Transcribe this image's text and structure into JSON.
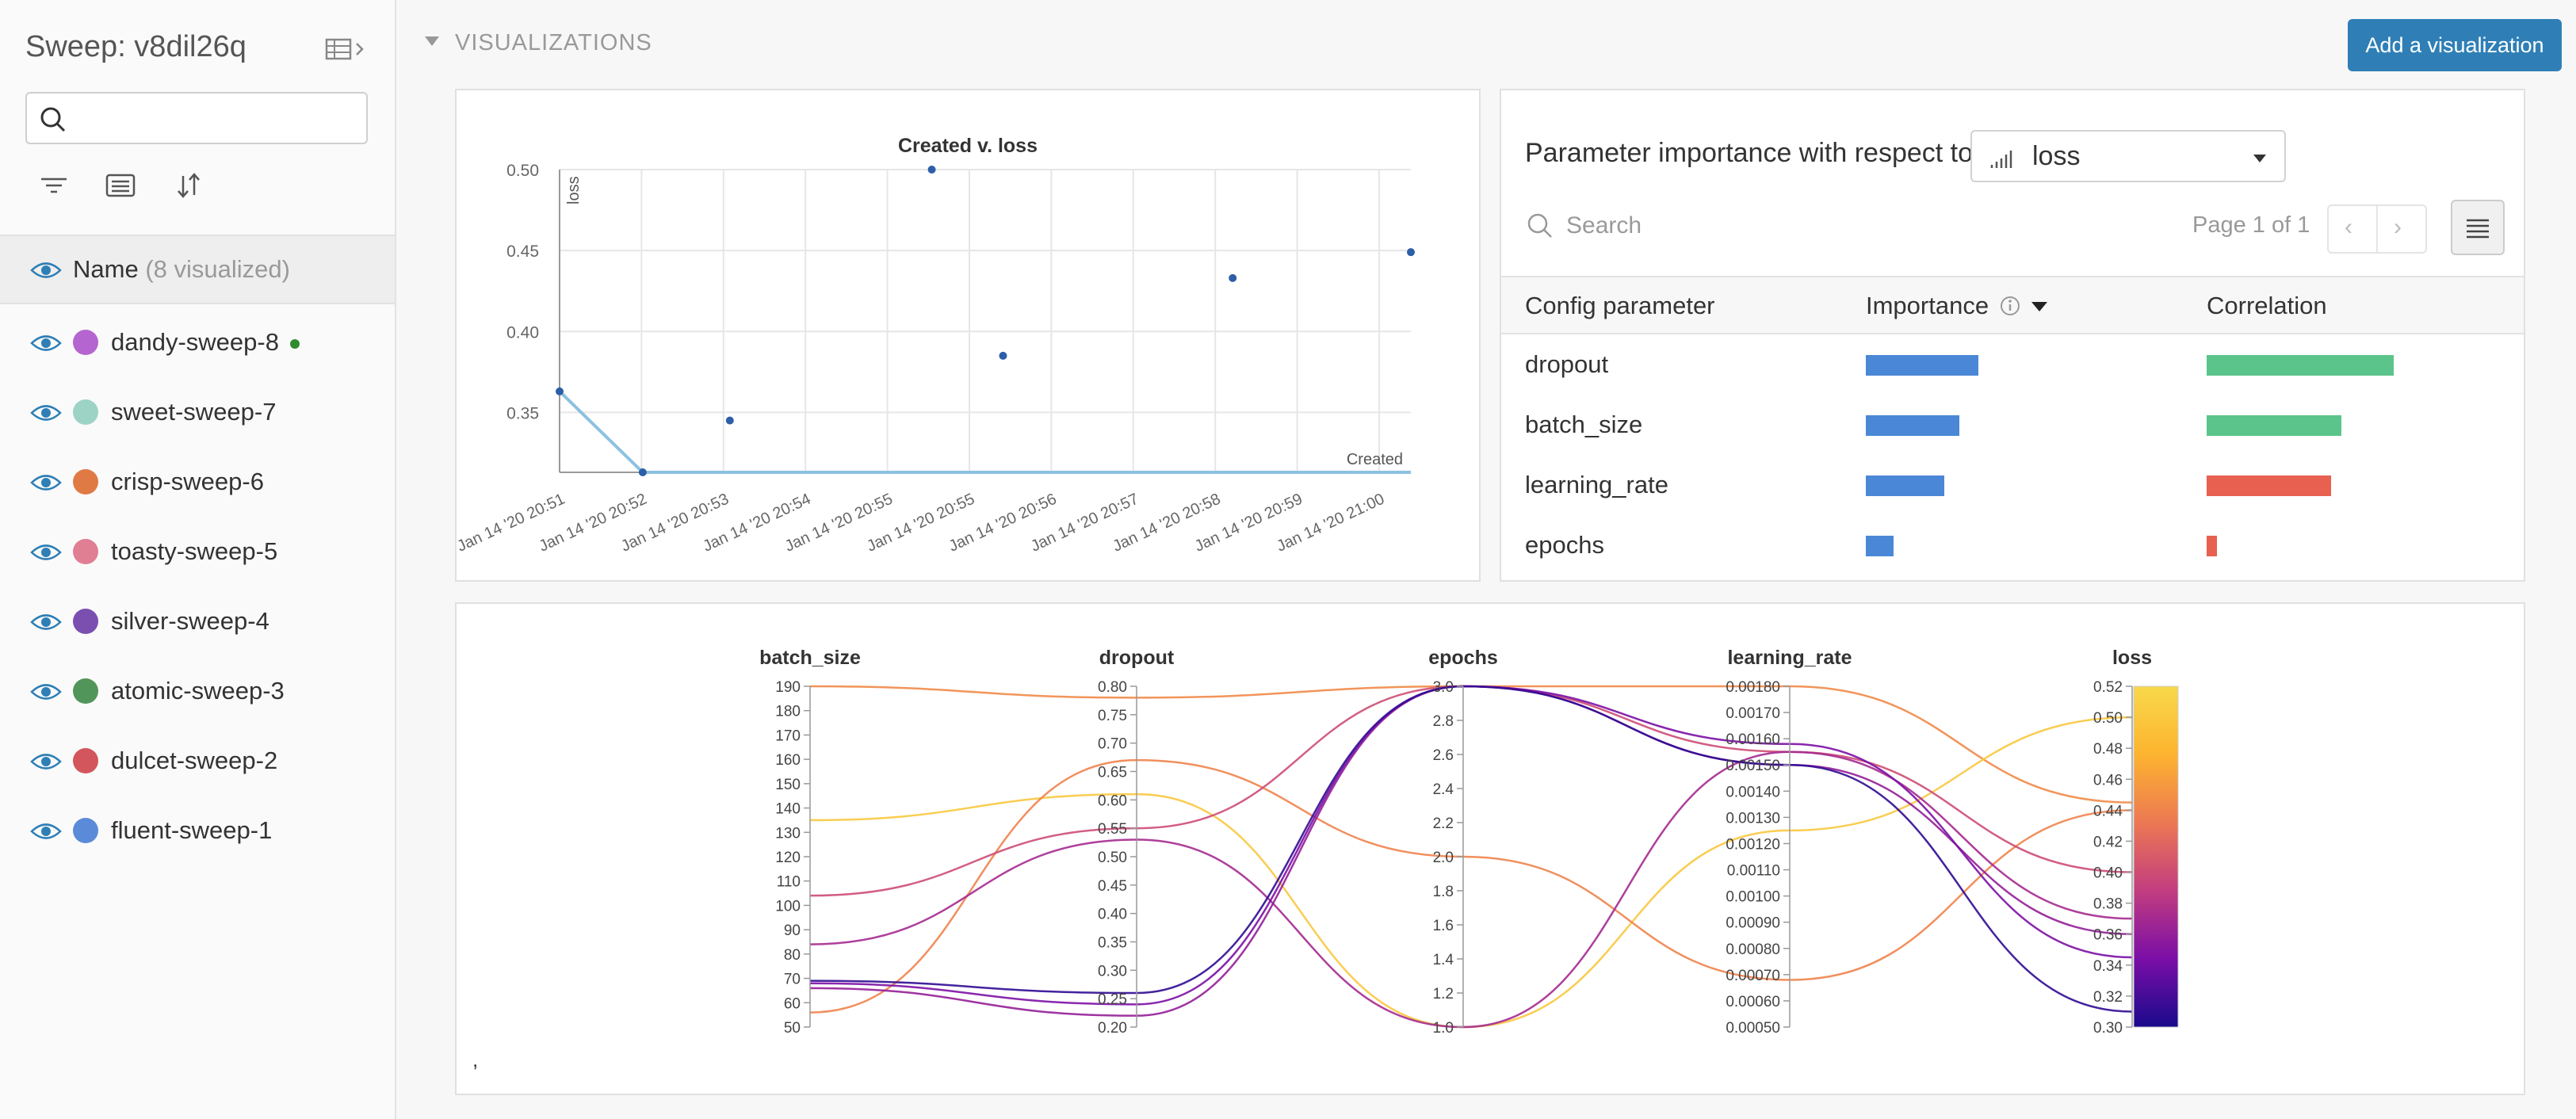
{
  "sidebar": {
    "title": "Sweep: v8dil26q",
    "search": {
      "value": "",
      "placeholder": ""
    },
    "name_header": {
      "label": "Name",
      "count": "(8 visualized)"
    },
    "runs": [
      {
        "name": "dandy-sweep-8",
        "color": "#b565cf",
        "live": true
      },
      {
        "name": "sweet-sweep-7",
        "color": "#9dd3c5",
        "live": false
      },
      {
        "name": "crisp-sweep-6",
        "color": "#e07a45",
        "live": false
      },
      {
        "name": "toasty-sweep-5",
        "color": "#e07e93",
        "live": false
      },
      {
        "name": "silver-sweep-4",
        "color": "#7a4fb0",
        "live": false
      },
      {
        "name": "atomic-sweep-3",
        "color": "#52955a",
        "live": false
      },
      {
        "name": "dulcet-sweep-2",
        "color": "#d2565b",
        "live": false
      },
      {
        "name": "fluent-sweep-1",
        "color": "#5b8bd8",
        "live": false
      }
    ]
  },
  "section": {
    "title": "VISUALIZATIONS",
    "add_button": "Add a visualization"
  },
  "importance": {
    "prompt": "Parameter importance with respect to",
    "metric": "loss",
    "search_placeholder": "Search",
    "page_label": "Page 1 of 1",
    "columns": [
      "Config parameter",
      "Importance",
      "Correlation"
    ],
    "rows": [
      {
        "param": "dropout",
        "importance": 0.6,
        "correlation": 0.9,
        "correlation_sign": "positive"
      },
      {
        "param": "batch_size",
        "importance": 0.5,
        "correlation": 0.65,
        "correlation_sign": "positive"
      },
      {
        "param": "learning_rate",
        "importance": 0.42,
        "correlation": 0.6,
        "correlation_sign": "negative"
      },
      {
        "param": "epochs",
        "importance": 0.15,
        "correlation": 0.05,
        "correlation_sign": "negative"
      }
    ],
    "colors": {
      "importance": "#4a87d6",
      "positive": "#5bc48a",
      "negative": "#e8604f"
    }
  },
  "parallel_footer": ",",
  "chart_data": [
    {
      "type": "scatter",
      "title": "Created v. loss",
      "xlabel": "Created",
      "ylabel": "loss",
      "x_ticks": [
        "Jan 14 '20 20:51",
        "Jan 14 '20 20:52",
        "Jan 14 '20 20:53",
        "Jan 14 '20 20:54",
        "Jan 14 '20 20:55",
        "Jan 14 '20 20:55",
        "Jan 14 '20 20:56",
        "Jan 14 '20 20:57",
        "Jan 14 '20 20:58",
        "Jan 14 '20 20:59",
        "Jan 14 '20 21:00"
      ],
      "y_ticks": [
        "0.50",
        "0.45",
        "0.40",
        "0.35"
      ],
      "xlim": [
        0,
        10.75
      ],
      "ylim": [
        0.313,
        0.5
      ],
      "series": [
        {
          "x": [
            0,
            1.05,
            2.15,
            4.7,
            5.6,
            8.5,
            10.75
          ],
          "y": [
            0.363,
            0.313,
            0.345,
            0.5,
            0.385,
            0.433,
            0.449
          ]
        }
      ],
      "line": {
        "x": [
          0,
          1.05,
          10.75
        ],
        "y": [
          0.363,
          0.313,
          0.313
        ]
      }
    },
    {
      "type": "parallel_coordinates",
      "axes": [
        {
          "name": "batch_size",
          "range": [
            50,
            190
          ],
          "ticks": [
            "190",
            "180",
            "170",
            "160",
            "150",
            "140",
            "130",
            "120",
            "110",
            "100",
            "90",
            "80",
            "70",
            "60",
            "50"
          ]
        },
        {
          "name": "dropout",
          "range": [
            0.2,
            0.8
          ],
          "ticks": [
            "0.80",
            "0.75",
            "0.70",
            "0.65",
            "0.60",
            "0.55",
            "0.50",
            "0.45",
            "0.40",
            "0.35",
            "0.30",
            "0.25",
            "0.20"
          ]
        },
        {
          "name": "epochs",
          "range": [
            1.0,
            3.0
          ],
          "ticks": [
            "3.0",
            "2.8",
            "2.6",
            "2.4",
            "2.2",
            "2.0",
            "1.8",
            "1.6",
            "1.4",
            "1.2",
            "1.0"
          ]
        },
        {
          "name": "learning_rate",
          "range": [
            0.0005,
            0.0018
          ],
          "ticks": [
            "0.00180",
            "0.00170",
            "0.00160",
            "0.00150",
            "0.00140",
            "0.00130",
            "0.00120",
            "0.00110",
            "0.00100",
            "0.00090",
            "0.00080",
            "0.00070",
            "0.00060",
            "0.00050"
          ]
        },
        {
          "name": "loss",
          "range": [
            0.3,
            0.52
          ],
          "ticks": [
            "0.52",
            "0.50",
            "0.48",
            "0.46",
            "0.44",
            "0.42",
            "0.40",
            "0.38",
            "0.36",
            "0.34",
            "0.32",
            "0.30"
          ]
        }
      ],
      "colorscale": [
        "#1a0a8c",
        "#7a0ea6",
        "#c23d80",
        "#ec7853",
        "#fdb42f",
        "#f8d84a"
      ],
      "lines": [
        {
          "values": [
            190,
            0.78,
            3.0,
            0.0018,
            0.445
          ]
        },
        {
          "values": [
            135,
            0.61,
            1.0,
            0.00125,
            0.5
          ]
        },
        {
          "values": [
            56,
            0.67,
            2.0,
            0.00068,
            0.44
          ]
        },
        {
          "values": [
            104,
            0.55,
            3.0,
            0.00155,
            0.4
          ]
        },
        {
          "values": [
            84,
            0.53,
            1.0,
            0.00155,
            0.37
          ]
        },
        {
          "values": [
            66,
            0.22,
            3.0,
            0.0015,
            0.36
          ]
        },
        {
          "values": [
            68,
            0.24,
            3.0,
            0.00158,
            0.345
          ]
        },
        {
          "values": [
            69,
            0.26,
            3.0,
            0.0015,
            0.31
          ]
        }
      ]
    }
  ]
}
